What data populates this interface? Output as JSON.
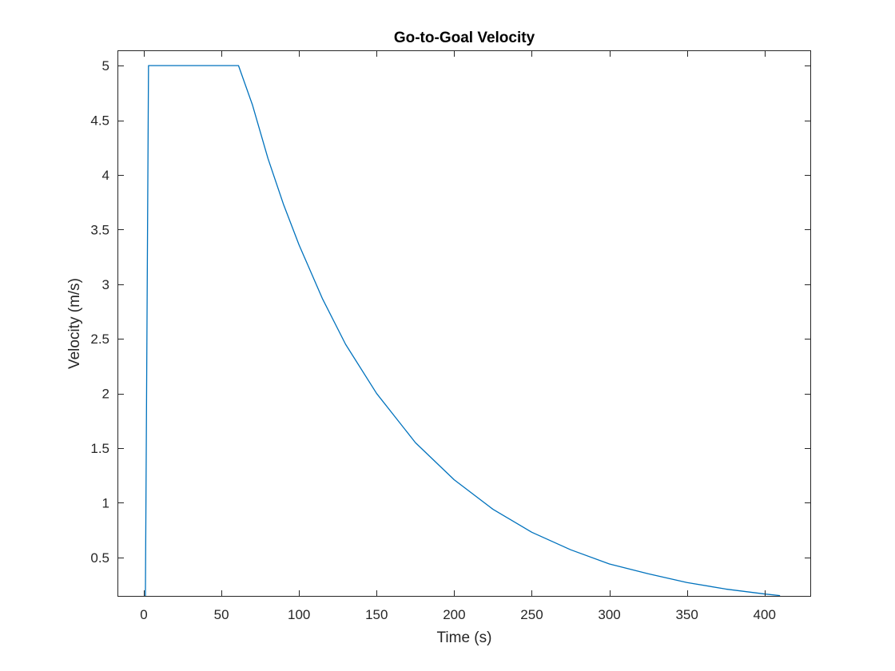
{
  "chart_data": {
    "type": "line",
    "title": "Go-to-Goal Velocity",
    "xlabel": "Time (s)",
    "ylabel": "Velocity (m/s)",
    "xlim": [
      -17,
      430
    ],
    "ylim": [
      0.14,
      5.14
    ],
    "grid": false,
    "legend": "none",
    "x_ticks": [
      0,
      50,
      100,
      150,
      200,
      250,
      300,
      350,
      400
    ],
    "y_ticks": [
      0.5,
      1,
      1.5,
      2,
      2.5,
      3,
      3.5,
      4,
      4.5,
      5
    ],
    "series": [
      {
        "color": "#0072bd",
        "x": [
          1,
          3,
          61,
          70,
          80,
          90,
          100,
          115,
          130,
          150,
          175,
          200,
          225,
          250,
          275,
          300,
          325,
          350,
          375,
          400,
          410
        ],
        "y": [
          0.14,
          5.0,
          5.0,
          4.64,
          4.15,
          3.73,
          3.36,
          2.87,
          2.45,
          2.0,
          1.55,
          1.21,
          0.94,
          0.73,
          0.57,
          0.44,
          0.35,
          0.27,
          0.21,
          0.165,
          0.15
        ]
      }
    ]
  }
}
